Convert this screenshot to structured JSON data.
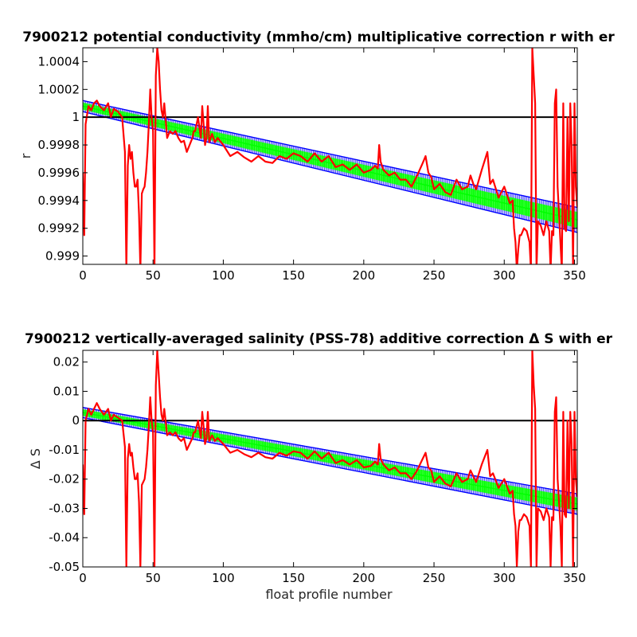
{
  "chart_data": [
    {
      "type": "line",
      "title": "7900212 potential conductivity (mmho/cm) multiplicative correction r with er",
      "xlabel": "",
      "ylabel": "r",
      "xlim": [
        0,
        352
      ],
      "ylim": [
        0.99894,
        1.0005
      ],
      "xticks": [
        0,
        50,
        100,
        150,
        200,
        250,
        300,
        350
      ],
      "xtick_labels": [
        "0",
        "50",
        "100",
        "150",
        "200",
        "250",
        "300",
        "350"
      ],
      "yticks": [
        0.999,
        0.9992,
        0.9994,
        0.9996,
        0.9998,
        1.0,
        1.0002,
        1.0004
      ],
      "ytick_labels": [
        "0.999",
        "0.9992",
        "0.9994",
        "0.9996",
        "0.9998",
        "1",
        "1.0002",
        "1.0004"
      ],
      "reference_line": 1.0,
      "colors": {
        "measured": "#ff0000",
        "fit": "#00ff00",
        "error_bounds": "#0000ff",
        "reference": "#000000"
      },
      "fit_line": {
        "x": [
          0,
          352
        ],
        "y": [
          1.00008,
          0.99926
        ]
      },
      "error_band": {
        "upper": [
          1.00012,
          0.99935
        ],
        "lower": [
          1.00004,
          0.99917
        ]
      },
      "series": [
        {
          "x": [
            0,
            1,
            2,
            4,
            6,
            8,
            10,
            12,
            15,
            18,
            20,
            22,
            25,
            28,
            30,
            31,
            32,
            33,
            34,
            35,
            36,
            37,
            38,
            39,
            40,
            41,
            42,
            43,
            44,
            45,
            46,
            47,
            48,
            49,
            50,
            51,
            52,
            53,
            54,
            55,
            56,
            57,
            58,
            60,
            62,
            64,
            66,
            68,
            70,
            72,
            74,
            76,
            78,
            79,
            80,
            82,
            84,
            85,
            86,
            87,
            88,
            89,
            90,
            92,
            94,
            96,
            100,
            105,
            110,
            115,
            120,
            125,
            130,
            135,
            140,
            145,
            150,
            155,
            160,
            165,
            170,
            175,
            180,
            185,
            190,
            195,
            200,
            205,
            208,
            210,
            211,
            212,
            214,
            218,
            222,
            226,
            230,
            234,
            238,
            242,
            244,
            246,
            248,
            250,
            254,
            258,
            262,
            266,
            270,
            274,
            276,
            278,
            280,
            284,
            288,
            290,
            292,
            296,
            300,
            304,
            306,
            307,
            308,
            309,
            310,
            311,
            312,
            314,
            316,
            318,
            319,
            320,
            321,
            322,
            323,
            324,
            326,
            328,
            330,
            332,
            333,
            334,
            335,
            336,
            337,
            338,
            339,
            340,
            341,
            342,
            343,
            344,
            345,
            346,
            347,
            348,
            349,
            350,
            351,
            352
          ],
          "y": [
            0.9996,
            0.99915,
            0.99995,
            1.00008,
            1.00005,
            1.0001,
            1.00012,
            1.00008,
            1.00005,
            1.0001,
            1.0,
            1.00006,
            1.00004,
            1.0,
            0.99975,
            0.9989,
            0.99965,
            0.9998,
            0.9997,
            0.99975,
            0.9996,
            0.9995,
            0.9995,
            0.99955,
            0.9993,
            0.9989,
            0.99945,
            0.99948,
            0.9995,
            0.9996,
            0.99975,
            0.99995,
            1.0002,
            1.0,
            0.9999,
            0.9989,
            1.0003,
            1.0005,
            1.0004,
            1.0002,
            1.00005,
            1.0,
            1.0001,
            0.99985,
            0.9999,
            0.99988,
            0.9999,
            0.99985,
            0.99982,
            0.99983,
            0.99975,
            0.9998,
            0.99985,
            0.9999,
            0.9999,
            1.0,
            0.99985,
            1.00008,
            0.99995,
            0.9998,
            0.99985,
            1.00008,
            0.99982,
            0.99988,
            0.99982,
            0.99985,
            0.9998,
            0.99972,
            0.99975,
            0.99971,
            0.99968,
            0.99972,
            0.99968,
            0.99967,
            0.99972,
            0.9997,
            0.99974,
            0.99972,
            0.99968,
            0.99974,
            0.99968,
            0.99972,
            0.99964,
            0.99966,
            0.99962,
            0.99966,
            0.9996,
            0.99962,
            0.99965,
            0.99963,
            0.9998,
            0.99968,
            0.99962,
            0.99958,
            0.9996,
            0.99955,
            0.99955,
            0.9995,
            0.99958,
            0.99967,
            0.99972,
            0.9996,
            0.99957,
            0.99948,
            0.99952,
            0.99946,
            0.99944,
            0.99955,
            0.99948,
            0.9995,
            0.99958,
            0.99952,
            0.99948,
            0.99962,
            0.99975,
            0.99952,
            0.99955,
            0.99942,
            0.9995,
            0.99938,
            0.9994,
            0.9992,
            0.9991,
            0.9989,
            0.99905,
            0.99915,
            0.99915,
            0.9992,
            0.99918,
            0.9991,
            0.9989,
            1.0005,
            1.0003,
            1.0001,
            0.9989,
            0.99925,
            0.99922,
            0.99915,
            0.99925,
            0.99918,
            0.9989,
            0.99918,
            0.99915,
            1.0001,
            1.0002,
            0.9995,
            0.9993,
            0.9991,
            0.9989,
            1.0001,
            0.9992,
            0.99918,
            1.0,
            0.99925,
            1.0001,
            0.9998,
            0.9989,
            1.0001,
            0.9995,
            0.99935
          ]
        }
      ]
    },
    {
      "type": "line",
      "title": "7900212 vertically-averaged salinity (PSS-78) additive correction Δ S with er",
      "xlabel": "float profile number",
      "ylabel": "Δ S",
      "xlim": [
        0,
        352
      ],
      "ylim": [
        -0.05,
        0.024
      ],
      "xticks": [
        0,
        50,
        100,
        150,
        200,
        250,
        300,
        350
      ],
      "xtick_labels": [
        "0",
        "50",
        "100",
        "150",
        "200",
        "250",
        "300",
        "350"
      ],
      "yticks": [
        -0.05,
        -0.04,
        -0.03,
        -0.02,
        -0.01,
        0.0,
        0.01,
        0.02
      ],
      "ytick_labels": [
        "-0.05",
        "-0.04",
        "-0.03",
        "-0.02",
        "-0.01",
        "0",
        "0.01",
        "0.02"
      ],
      "reference_line": 0.0,
      "colors": {
        "measured": "#ff0000",
        "fit": "#00ff00",
        "error_bounds": "#0000ff",
        "reference": "#000000"
      },
      "fit_line": {
        "x": [
          0,
          352
        ],
        "y": [
          0.0027,
          -0.0285
        ]
      },
      "error_band": {
        "upper": [
          0.0045,
          -0.025
        ],
        "lower": [
          0.001,
          -0.032
        ]
      },
      "series": [
        {
          "x": [
            0,
            1,
            2,
            4,
            6,
            8,
            10,
            12,
            15,
            18,
            20,
            22,
            25,
            28,
            30,
            31,
            32,
            33,
            34,
            35,
            36,
            37,
            38,
            39,
            40,
            41,
            42,
            43,
            44,
            45,
            46,
            47,
            48,
            49,
            50,
            51,
            52,
            53,
            54,
            55,
            56,
            57,
            58,
            60,
            62,
            64,
            66,
            68,
            70,
            72,
            74,
            76,
            78,
            79,
            80,
            82,
            84,
            85,
            86,
            87,
            88,
            89,
            90,
            92,
            94,
            96,
            100,
            105,
            110,
            115,
            120,
            125,
            130,
            135,
            140,
            145,
            150,
            155,
            160,
            165,
            170,
            175,
            180,
            185,
            190,
            195,
            200,
            205,
            208,
            210,
            211,
            212,
            214,
            218,
            222,
            226,
            230,
            234,
            238,
            242,
            244,
            246,
            248,
            250,
            254,
            258,
            262,
            266,
            270,
            274,
            276,
            278,
            280,
            284,
            288,
            290,
            292,
            296,
            300,
            304,
            306,
            307,
            308,
            309,
            310,
            311,
            312,
            314,
            316,
            318,
            319,
            320,
            321,
            322,
            323,
            324,
            326,
            328,
            330,
            332,
            333,
            334,
            335,
            336,
            337,
            338,
            339,
            340,
            341,
            342,
            343,
            344,
            345,
            346,
            347,
            348,
            349,
            350,
            351,
            352
          ],
          "y": [
            -0.015,
            -0.032,
            0.0,
            0.004,
            0.002,
            0.004,
            0.006,
            0.004,
            0.002,
            0.004,
            0.0,
            0.002,
            0.001,
            0.0,
            -0.009,
            -0.05,
            -0.013,
            -0.008,
            -0.012,
            -0.011,
            -0.016,
            -0.02,
            -0.02,
            -0.018,
            -0.028,
            -0.05,
            -0.022,
            -0.021,
            -0.02,
            -0.016,
            -0.01,
            -0.002,
            0.008,
            0.0,
            -0.004,
            -0.05,
            0.012,
            0.024,
            0.016,
            0.008,
            0.002,
            0.0,
            0.004,
            -0.005,
            -0.004,
            -0.005,
            -0.004,
            -0.006,
            -0.007,
            -0.006,
            -0.01,
            -0.008,
            -0.006,
            -0.004,
            -0.004,
            0.0,
            -0.006,
            0.003,
            -0.002,
            -0.008,
            -0.006,
            0.003,
            -0.007,
            -0.005,
            -0.007,
            -0.006,
            -0.008,
            -0.011,
            -0.01,
            -0.0115,
            -0.0125,
            -0.011,
            -0.0125,
            -0.013,
            -0.011,
            -0.012,
            -0.0105,
            -0.011,
            -0.013,
            -0.0105,
            -0.013,
            -0.011,
            -0.0145,
            -0.0135,
            -0.015,
            -0.0135,
            -0.016,
            -0.0155,
            -0.014,
            -0.015,
            -0.008,
            -0.013,
            -0.015,
            -0.017,
            -0.016,
            -0.018,
            -0.018,
            -0.02,
            -0.017,
            -0.013,
            -0.011,
            -0.016,
            -0.017,
            -0.021,
            -0.019,
            -0.0215,
            -0.0225,
            -0.018,
            -0.021,
            -0.02,
            -0.017,
            -0.019,
            -0.021,
            -0.015,
            -0.01,
            -0.019,
            -0.018,
            -0.023,
            -0.02,
            -0.025,
            -0.024,
            -0.032,
            -0.036,
            -0.05,
            -0.038,
            -0.034,
            -0.034,
            -0.032,
            -0.033,
            -0.036,
            -0.05,
            0.024,
            0.012,
            0.004,
            -0.05,
            -0.03,
            -0.031,
            -0.034,
            -0.03,
            -0.033,
            -0.05,
            -0.033,
            -0.034,
            0.003,
            0.008,
            -0.02,
            -0.028,
            -0.036,
            -0.05,
            0.003,
            -0.032,
            -0.033,
            0.0,
            -0.03,
            0.003,
            -0.008,
            -0.05,
            0.003,
            -0.02,
            -0.026
          ]
        }
      ]
    }
  ]
}
